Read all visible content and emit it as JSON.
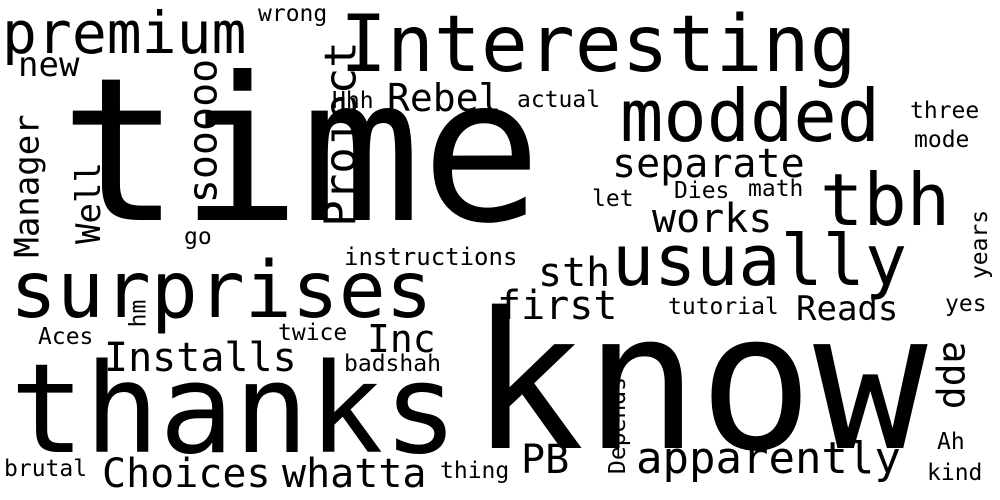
{
  "colors": {
    "background": "#ffffff",
    "text": "#000000"
  },
  "words": [
    "time",
    "know",
    "thanks",
    "surprises",
    "Interesting",
    "modded",
    "usually",
    "tbh",
    "apparently",
    "premium",
    "Project",
    "Manager",
    "Well",
    "sooooo",
    "Installs",
    "Choices",
    "whatta",
    "first",
    "separate",
    "works",
    "sth",
    "Rebel",
    "Inc",
    "PB",
    "app",
    "Reads",
    "new",
    "instructions",
    "tutorial",
    "badshah",
    "actual",
    "three",
    "mode",
    "years",
    "yes",
    "twice",
    "Aces",
    "hm",
    "go",
    "let",
    "Dies",
    "math",
    "Hhh",
    "wrong",
    "brutal",
    "thing",
    "Depends",
    "Ah",
    "kind"
  ]
}
